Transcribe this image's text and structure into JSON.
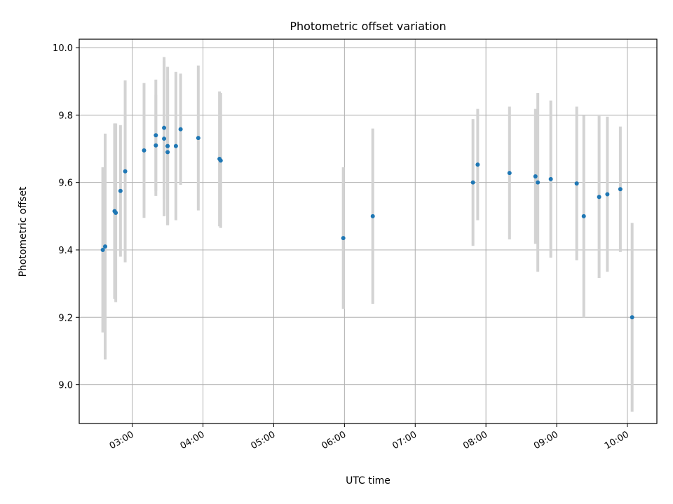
{
  "chart_data": {
    "type": "scatter",
    "title": "Photometric offset variation",
    "xlabel": "UTC time",
    "ylabel": "Photometric offset",
    "x_unit": "UTC time (HH:MM)",
    "xlim": [
      "02:15",
      "10:25"
    ],
    "ylim": [
      8.885,
      10.025
    ],
    "grid": true,
    "x_ticks": [
      "03:00",
      "04:00",
      "05:00",
      "06:00",
      "07:00",
      "08:00",
      "09:00",
      "10:00"
    ],
    "y_ticks": [
      "9.0",
      "9.2",
      "9.4",
      "9.6",
      "9.8",
      "10.0"
    ],
    "colors": {
      "points": "#1f77b4",
      "errorbars": "#d3d3d3",
      "grid": "#b0b0b0"
    },
    "points": [
      {
        "t": "02:35",
        "y": 9.4,
        "err": 0.245
      },
      {
        "t": "02:37",
        "y": 9.41,
        "err": 0.335
      },
      {
        "t": "02:45",
        "y": 9.515,
        "err": 0.26
      },
      {
        "t": "02:46",
        "y": 9.51,
        "err": 0.265
      },
      {
        "t": "02:50",
        "y": 9.575,
        "err": 0.195
      },
      {
        "t": "02:54",
        "y": 9.633,
        "err": 0.27
      },
      {
        "t": "03:10",
        "y": 9.695,
        "err": 0.2
      },
      {
        "t": "03:20",
        "y": 9.71,
        "err": 0.15
      },
      {
        "t": "03:20",
        "y": 9.74,
        "err": 0.165
      },
      {
        "t": "03:27",
        "y": 9.762,
        "err": 0.21
      },
      {
        "t": "03:27",
        "y": 9.73,
        "err": 0.23
      },
      {
        "t": "03:30",
        "y": 9.708,
        "err": 0.235
      },
      {
        "t": "03:30",
        "y": 9.69,
        "err": 0.215
      },
      {
        "t": "03:37",
        "y": 9.708,
        "err": 0.22
      },
      {
        "t": "03:41",
        "y": 9.758,
        "err": 0.165
      },
      {
        "t": "03:56",
        "y": 9.732,
        "err": 0.215
      },
      {
        "t": "04:14",
        "y": 9.67,
        "err": 0.2
      },
      {
        "t": "04:15",
        "y": 9.665,
        "err": 0.2
      },
      {
        "t": "05:59",
        "y": 9.435,
        "err": 0.21
      },
      {
        "t": "06:24",
        "y": 9.5,
        "err": 0.26
      },
      {
        "t": "07:49",
        "y": 9.6,
        "err": 0.188
      },
      {
        "t": "07:53",
        "y": 9.653,
        "err": 0.165
      },
      {
        "t": "08:20",
        "y": 9.628,
        "err": 0.197
      },
      {
        "t": "08:42",
        "y": 9.618,
        "err": 0.2
      },
      {
        "t": "08:44",
        "y": 9.6,
        "err": 0.265
      },
      {
        "t": "08:55",
        "y": 9.61,
        "err": 0.233
      },
      {
        "t": "09:17",
        "y": 9.597,
        "err": 0.228
      },
      {
        "t": "09:23",
        "y": 9.5,
        "err": 0.3
      },
      {
        "t": "09:36",
        "y": 9.557,
        "err": 0.24
      },
      {
        "t": "09:43",
        "y": 9.565,
        "err": 0.23
      },
      {
        "t": "09:54",
        "y": 9.58,
        "err": 0.186
      },
      {
        "t": "10:04",
        "y": 9.2,
        "err": 0.28
      }
    ]
  }
}
